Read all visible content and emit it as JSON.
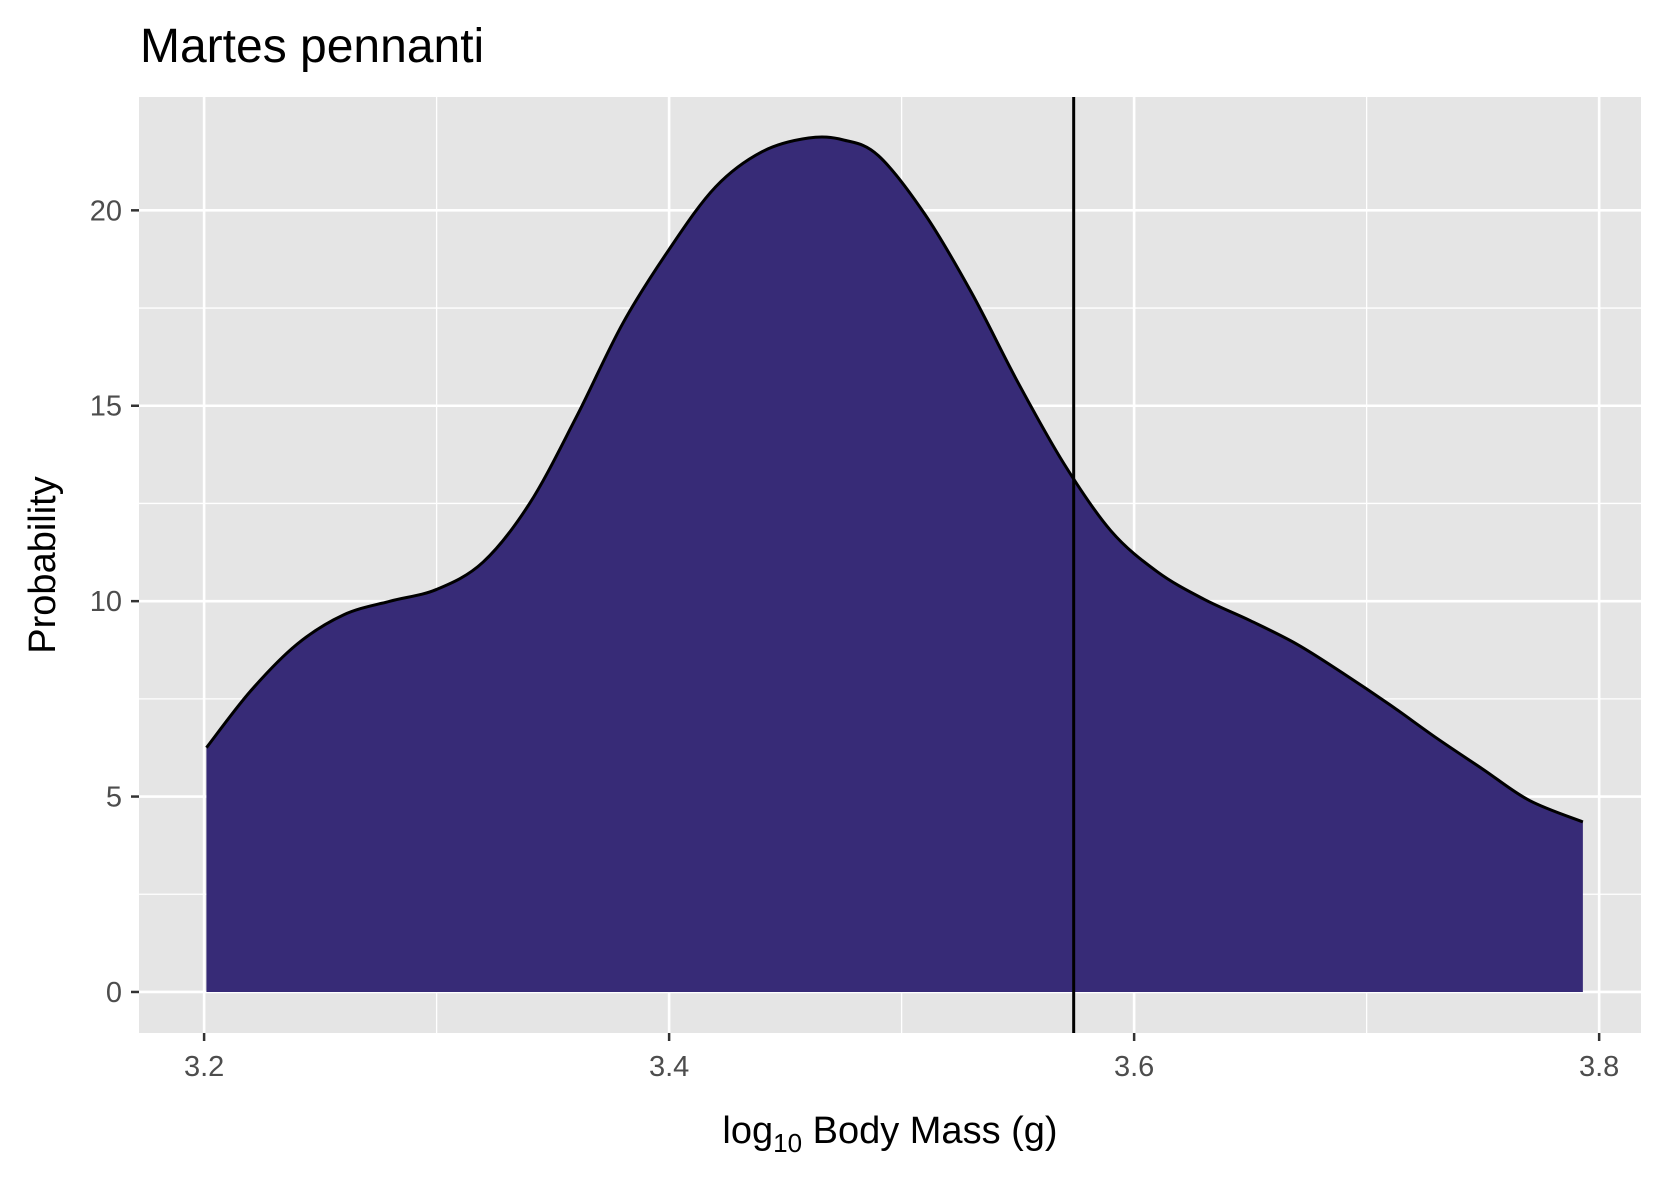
{
  "chart_data": {
    "type": "area",
    "title": "Martes pennanti",
    "xlabel_prefix": "log",
    "xlabel_subscript": "10",
    "xlabel_suffix": " Body Mass (g)",
    "ylabel": "Probability",
    "xlim": [
      3.172,
      3.818
    ],
    "ylim": [
      -1.05,
      22.9
    ],
    "x_ticks": [
      3.2,
      3.4,
      3.6,
      3.8
    ],
    "x_tick_labels": [
      "3.2",
      "3.4",
      "3.6",
      "3.8"
    ],
    "x_minor_ticks": [
      3.3,
      3.5,
      3.7
    ],
    "y_ticks": [
      0,
      5,
      10,
      15,
      20
    ],
    "y_tick_labels": [
      "0",
      "5",
      "10",
      "15",
      "20"
    ],
    "y_minor_ticks": [
      2.5,
      7.5,
      12.5,
      17.5
    ],
    "grid": true,
    "legend": "none",
    "colors": {
      "panel_background": "#e5e5e5",
      "grid": "#ffffff",
      "fill": "#372b77",
      "outline": "#000000",
      "reference_line": "#000000"
    },
    "series": [
      {
        "x": [
          3.201,
          3.22,
          3.24,
          3.26,
          3.28,
          3.3,
          3.32,
          3.34,
          3.36,
          3.38,
          3.4,
          3.42,
          3.44,
          3.46,
          3.475,
          3.49,
          3.51,
          3.53,
          3.55,
          3.57,
          3.59,
          3.61,
          3.63,
          3.65,
          3.67,
          3.69,
          3.71,
          3.73,
          3.75,
          3.77,
          3.793
        ],
        "y": [
          6.25,
          7.7,
          8.9,
          9.65,
          10.0,
          10.3,
          11.0,
          12.5,
          14.7,
          17.1,
          19.0,
          20.6,
          21.5,
          21.85,
          21.8,
          21.4,
          19.9,
          17.9,
          15.6,
          13.5,
          11.8,
          10.75,
          10.05,
          9.5,
          8.9,
          8.15,
          7.35,
          6.5,
          5.7,
          4.9,
          4.35
        ]
      }
    ],
    "reference_line_x": 3.574
  }
}
